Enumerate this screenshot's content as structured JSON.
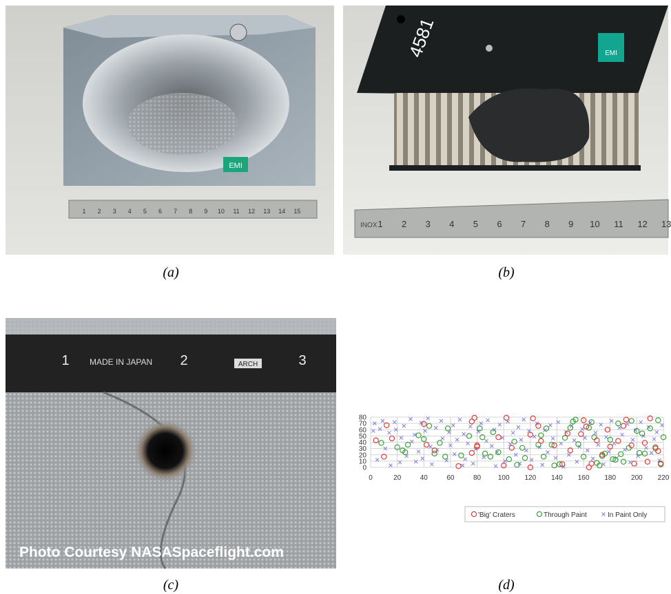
{
  "figure": {
    "captions": [
      "(a)",
      "(b)",
      "(c)",
      "(d)"
    ],
    "panel_a": {
      "badge": "EMI",
      "ruler": [
        "1",
        "2",
        "3",
        "4",
        "5",
        "6",
        "7",
        "8",
        "9",
        "10",
        "11",
        "12",
        "13",
        "14",
        "15"
      ]
    },
    "panel_b": {
      "marking": "4581",
      "badge": "EMI",
      "ruler_brand": "INOX",
      "ruler": [
        "1",
        "2",
        "3",
        "4",
        "5",
        "6",
        "7",
        "8",
        "9",
        "10",
        "11",
        "12",
        "13"
      ]
    },
    "panel_c": {
      "ruler_text": "MADE IN JAPAN",
      "ruler_brand": "ARCH",
      "ruler": [
        "1",
        "2",
        "3"
      ],
      "watermark": "Photo Courtesy NASASpaceflight.com"
    }
  },
  "chart_data": {
    "type": "scatter",
    "xlim": [
      0,
      220
    ],
    "xticks": [
      0,
      20,
      40,
      60,
      80,
      100,
      120,
      140,
      160,
      180,
      200,
      220
    ],
    "ylim": [
      0,
      80
    ],
    "yticks": [
      0,
      10,
      20,
      30,
      40,
      50,
      60,
      70,
      80
    ],
    "grid": true,
    "legend": "bottom-right",
    "series": [
      {
        "name": "'Big' Craters",
        "color": "#e03030",
        "marker": "circle",
        "x": [
          4,
          12,
          16,
          10,
          42,
          40,
          48,
          66,
          76,
          78,
          76,
          80,
          80,
          96,
          102,
          106,
          100,
          120,
          122,
          126,
          128,
          120,
          138,
          144,
          148,
          150,
          158,
          160,
          162,
          164,
          166,
          170,
          174,
          178,
          180,
          186,
          190,
          192,
          196,
          198,
          206,
          208,
          210,
          214,
          216,
          218
        ],
        "y": [
          43,
          67,
          46,
          17,
          36,
          69,
          27,
          2,
          73,
          79,
          23,
          35,
          33,
          48,
          79,
          31,
          3,
          52,
          78,
          66,
          42,
          0,
          35,
          5,
          54,
          27,
          53,
          75,
          65,
          0,
          6,
          43,
          20,
          60,
          33,
          42,
          66,
          76,
          35,
          6,
          39,
          9,
          78,
          32,
          26,
          6
        ]
      },
      {
        "name": "Through Paint",
        "color": "#2e9a2e",
        "marker": "circle",
        "x": [
          8,
          20,
          24,
          26,
          28,
          36,
          40,
          44,
          48,
          52,
          56,
          58,
          68,
          74,
          82,
          84,
          86,
          90,
          92,
          96,
          104,
          108,
          110,
          114,
          116,
          126,
          128,
          130,
          132,
          136,
          138,
          142,
          146,
          150,
          152,
          154,
          156,
          160,
          164,
          166,
          168,
          170,
          172,
          174,
          176,
          180,
          182,
          184,
          186,
          188,
          190,
          194,
          196,
          200,
          202,
          204,
          206,
          210,
          214,
          216,
          218,
          220
        ],
        "y": [
          39,
          32,
          27,
          24,
          36,
          51,
          45,
          66,
          22,
          39,
          17,
          62,
          19,
          50,
          62,
          48,
          22,
          17,
          56,
          24,
          13,
          41,
          4,
          31,
          15,
          36,
          51,
          17,
          62,
          36,
          3,
          5,
          47,
          63,
          73,
          76,
          37,
          17,
          63,
          72,
          48,
          7,
          3,
          18,
          22,
          44,
          13,
          12,
          70,
          21,
          9,
          31,
          74,
          58,
          23,
          54,
          22,
          62,
          30,
          75,
          5,
          48
        ]
      },
      {
        "name": "In Paint Only",
        "color": "#7b7fe0",
        "marker": "x",
        "x": [
          2,
          3,
          5,
          7,
          9,
          11,
          14,
          15,
          18,
          19,
          22,
          23,
          25,
          27,
          30,
          31,
          33,
          34,
          36,
          38,
          39,
          41,
          43,
          45,
          46,
          49,
          50,
          53,
          54,
          57,
          59,
          60,
          62,
          63,
          65,
          67,
          69,
          70,
          71,
          73,
          75,
          77,
          79,
          81,
          83,
          85,
          87,
          88,
          91,
          93,
          94,
          95,
          97,
          99,
          101,
          103,
          105,
          107,
          109,
          111,
          112,
          113,
          115,
          117,
          119,
          121,
          123,
          125,
          127,
          129,
          131,
          133,
          135,
          137,
          139,
          141,
          143,
          145,
          147,
          149,
          151,
          153,
          155,
          157,
          159,
          161,
          163,
          165,
          167,
          169,
          171,
          173,
          175,
          177,
          179,
          181,
          183,
          185,
          187,
          189,
          191,
          193,
          195,
          197,
          199,
          201,
          203,
          205,
          207,
          209,
          211,
          213,
          215,
          217,
          219
        ],
        "y": [
          58,
          70,
          12,
          61,
          74,
          30,
          55,
          3,
          72,
          60,
          8,
          47,
          66,
          18,
          77,
          41,
          52,
          9,
          25,
          71,
          14,
          58,
          78,
          33,
          5,
          63,
          28,
          74,
          46,
          11,
          56,
          35,
          67,
          21,
          44,
          76,
          3,
          53,
          13,
          38,
          65,
          6,
          29,
          57,
          70,
          16,
          42,
          75,
          34,
          60,
          2,
          24,
          68,
          47,
          10,
          73,
          37,
          55,
          20,
          64,
          6,
          44,
          76,
          27,
          58,
          12,
          49,
          70,
          32,
          4,
          59,
          24,
          67,
          46,
          15,
          72,
          38,
          1,
          56,
          20,
          66,
          43,
          9,
          33,
          61,
          47,
          27,
          71,
          14,
          55,
          36,
          68,
          5,
          48,
          25,
          74,
          38,
          15,
          63,
          52,
          28,
          69,
          8,
          44,
          59,
          18,
          72,
          50,
          31,
          64,
          23,
          45,
          56,
          11,
          67
        ]
      }
    ]
  }
}
